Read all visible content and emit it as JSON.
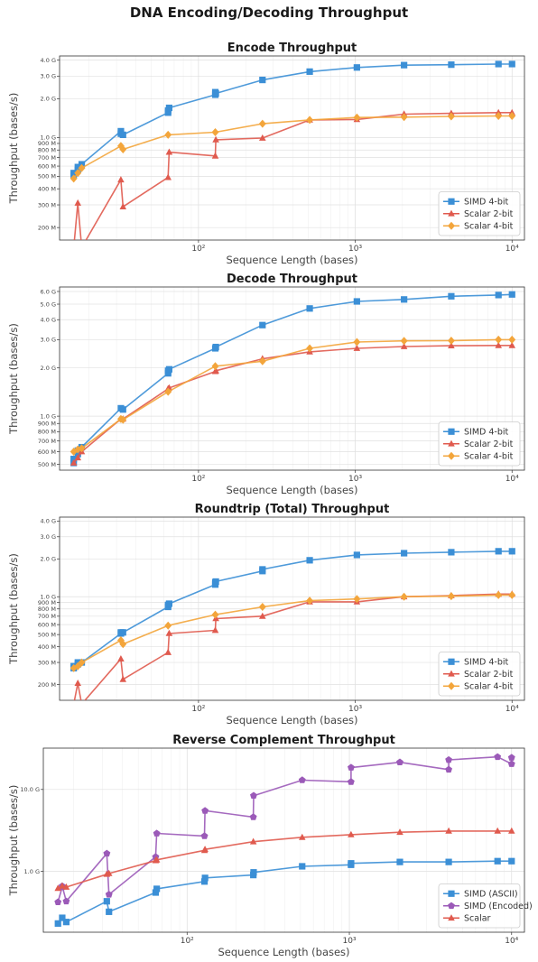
{
  "figure": {
    "title": "DNA Encoding/Decoding Throughput"
  },
  "colors": {
    "blue": "#3b8fd6",
    "red": "#e05a4e",
    "orange": "#f3a53b",
    "purple": "#9b5ab8"
  },
  "chart_data": [
    {
      "type": "line",
      "title": "Encode Throughput",
      "xlabel": "Sequence Length (bases)",
      "ylabel": "Throughput (bases/s)",
      "xscale": "log",
      "yscale": "log",
      "xlim": [
        13,
        12000
      ],
      "ylim": [
        160000000,
        4300000000
      ],
      "grid": true,
      "legend_position": "bottom-right",
      "yticks": [
        {
          "v": 200000000,
          "label": "200 M"
        },
        {
          "v": 300000000,
          "label": "300 M"
        },
        {
          "v": 400000000,
          "label": "400 M"
        },
        {
          "v": 500000000,
          "label": "500 M"
        },
        {
          "v": 600000000,
          "label": "600 M"
        },
        {
          "v": 700000000,
          "label": "700 M"
        },
        {
          "v": 800000000,
          "label": "800 M"
        },
        {
          "v": 900000000,
          "label": "900 M"
        },
        {
          "v": 1000000000,
          "label": "1.0 G"
        },
        {
          "v": 2000000000,
          "label": "2.0 G"
        },
        {
          "v": 3000000000,
          "label": "3.0 G"
        },
        {
          "v": 4000000000,
          "label": "4.0 G"
        }
      ],
      "xticks": [
        {
          "v": 100,
          "label": "10²"
        },
        {
          "v": 1000,
          "label": "10³"
        },
        {
          "v": 10000,
          "label": "10⁴"
        }
      ],
      "series": [
        {
          "name": "SIMD 4-bit",
          "color": "blue",
          "marker": "square",
          "x": [
            16,
            16,
            17,
            17,
            18,
            32,
            32,
            33,
            64,
            64,
            65,
            128,
            128,
            129,
            256,
            512,
            1024,
            2048,
            4096,
            8192,
            10000
          ],
          "y": [
            510000000,
            530000000,
            560000000,
            590000000,
            620000000,
            1120000000,
            1070000000,
            1050000000,
            1560000000,
            1620000000,
            1700000000,
            2150000000,
            2250000000,
            2200000000,
            2800000000,
            3250000000,
            3500000000,
            3650000000,
            3680000000,
            3720000000,
            3720000000
          ]
        },
        {
          "name": "Scalar 2-bit",
          "color": "red",
          "marker": "triangle",
          "x": [
            16,
            17,
            18,
            32,
            33,
            64,
            65,
            128,
            129,
            256,
            512,
            1024,
            2048,
            4096,
            8192,
            10000
          ],
          "y": [
            140000000,
            310000000,
            140000000,
            470000000,
            290000000,
            490000000,
            770000000,
            720000000,
            960000000,
            990000000,
            1370000000,
            1380000000,
            1520000000,
            1540000000,
            1560000000,
            1560000000
          ]
        },
        {
          "name": "Scalar 4-bit",
          "color": "orange",
          "marker": "diamond",
          "x": [
            16,
            17,
            18,
            32,
            33,
            64,
            128,
            256,
            512,
            1024,
            2048,
            4096,
            8192,
            10000
          ],
          "y": [
            480000000,
            530000000,
            580000000,
            860000000,
            810000000,
            1050000000,
            1100000000,
            1280000000,
            1370000000,
            1430000000,
            1440000000,
            1460000000,
            1470000000,
            1470000000
          ]
        }
      ]
    },
    {
      "type": "line",
      "title": "Decode Throughput",
      "xlabel": "Sequence Length (bases)",
      "ylabel": "Throughput (bases/s)",
      "xscale": "log",
      "yscale": "log",
      "xlim": [
        13,
        12000
      ],
      "ylim": [
        460000000,
        6400000000
      ],
      "grid": true,
      "legend_position": "bottom-right",
      "yticks": [
        {
          "v": 500000000,
          "label": "500 M"
        },
        {
          "v": 600000000,
          "label": "600 M"
        },
        {
          "v": 700000000,
          "label": "700 M"
        },
        {
          "v": 800000000,
          "label": "800 M"
        },
        {
          "v": 900000000,
          "label": "900 M"
        },
        {
          "v": 1000000000,
          "label": "1.0 G"
        },
        {
          "v": 2000000000,
          "label": "2.0 G"
        },
        {
          "v": 3000000000,
          "label": "3.0 G"
        },
        {
          "v": 4000000000,
          "label": "4.0 G"
        },
        {
          "v": 5000000000,
          "label": "5.0 G"
        },
        {
          "v": 6000000000,
          "label": "6.0 G"
        }
      ],
      "xticks": [
        {
          "v": 100,
          "label": "10²"
        },
        {
          "v": 1000,
          "label": "10³"
        },
        {
          "v": 10000,
          "label": "10⁴"
        }
      ],
      "series": [
        {
          "name": "SIMD 4-bit",
          "color": "blue",
          "marker": "square",
          "x": [
            16,
            16,
            17,
            17,
            18,
            32,
            33,
            64,
            64,
            65,
            128,
            129,
            256,
            512,
            1024,
            2048,
            4096,
            8192,
            10000
          ],
          "y": [
            510000000,
            540000000,
            580000000,
            610000000,
            640000000,
            1120000000,
            1100000000,
            1850000000,
            1920000000,
            1960000000,
            2650000000,
            2700000000,
            3700000000,
            4700000000,
            5200000000,
            5350000000,
            5600000000,
            5700000000,
            5750000000
          ]
        },
        {
          "name": "Scalar 2-bit",
          "color": "red",
          "marker": "triangle",
          "x": [
            16,
            17,
            18,
            32,
            33,
            64,
            65,
            128,
            129,
            256,
            512,
            1024,
            2048,
            4096,
            8192,
            10000
          ],
          "y": [
            510000000,
            550000000,
            600000000,
            960000000,
            960000000,
            1480000000,
            1500000000,
            1900000000,
            1920000000,
            2280000000,
            2520000000,
            2650000000,
            2720000000,
            2750000000,
            2760000000,
            2760000000
          ]
        },
        {
          "name": "Scalar 4-bit",
          "color": "orange",
          "marker": "diamond",
          "x": [
            16,
            17,
            18,
            32,
            33,
            64,
            128,
            256,
            512,
            1024,
            2048,
            4096,
            8192,
            10000
          ],
          "y": [
            600000000,
            620000000,
            630000000,
            960000000,
            950000000,
            1420000000,
            2050000000,
            2200000000,
            2650000000,
            2900000000,
            2950000000,
            2960000000,
            3000000000,
            3000000000
          ]
        }
      ]
    },
    {
      "type": "line",
      "title": "Roundtrip (Total) Throughput",
      "xlabel": "Sequence Length (bases)",
      "ylabel": "Throughput (bases/s)",
      "xscale": "log",
      "yscale": "log",
      "xlim": [
        13,
        12000
      ],
      "ylim": [
        150000000,
        4300000000
      ],
      "grid": true,
      "legend_position": "bottom-right",
      "yticks": [
        {
          "v": 200000000,
          "label": "200 M"
        },
        {
          "v": 300000000,
          "label": "300 M"
        },
        {
          "v": 400000000,
          "label": "400 M"
        },
        {
          "v": 500000000,
          "label": "500 M"
        },
        {
          "v": 600000000,
          "label": "600 M"
        },
        {
          "v": 700000000,
          "label": "700 M"
        },
        {
          "v": 800000000,
          "label": "800 M"
        },
        {
          "v": 900000000,
          "label": "900 M"
        },
        {
          "v": 1000000000,
          "label": "1.0 G"
        },
        {
          "v": 2000000000,
          "label": "2.0 G"
        },
        {
          "v": 3000000000,
          "label": "3.0 G"
        },
        {
          "v": 4000000000,
          "label": "4.0 G"
        }
      ],
      "xticks": [
        {
          "v": 100,
          "label": "10²"
        },
        {
          "v": 1000,
          "label": "10³"
        },
        {
          "v": 10000,
          "label": "10⁴"
        }
      ],
      "series": [
        {
          "name": "SIMD 4-bit",
          "color": "blue",
          "marker": "square",
          "x": [
            16,
            16,
            17,
            17,
            18,
            32,
            32,
            33,
            64,
            64,
            65,
            128,
            128,
            129,
            256,
            256,
            512,
            1024,
            2048,
            4096,
            8192,
            10000
          ],
          "y": [
            270000000,
            280000000,
            290000000,
            300000000,
            300000000,
            510000000,
            520000000,
            520000000,
            830000000,
            860000000,
            880000000,
            1250000000,
            1300000000,
            1320000000,
            1600000000,
            1650000000,
            1950000000,
            2150000000,
            2220000000,
            2260000000,
            2300000000,
            2300000000
          ]
        },
        {
          "name": "Scalar 2-bit",
          "color": "red",
          "marker": "triangle",
          "x": [
            16,
            17,
            18,
            32,
            33,
            64,
            65,
            128,
            129,
            256,
            512,
            1024,
            2048,
            4096,
            8192,
            10000
          ],
          "y": [
            140000000,
            205000000,
            140000000,
            320000000,
            220000000,
            360000000,
            510000000,
            540000000,
            670000000,
            700000000,
            910000000,
            910000000,
            1000000000,
            1020000000,
            1050000000,
            1050000000
          ]
        },
        {
          "name": "Scalar 4-bit",
          "color": "orange",
          "marker": "diamond",
          "x": [
            16,
            17,
            18,
            32,
            33,
            64,
            128,
            256,
            512,
            1024,
            2048,
            4096,
            8192,
            10000
          ],
          "y": [
            270000000,
            280000000,
            300000000,
            450000000,
            420000000,
            590000000,
            720000000,
            830000000,
            930000000,
            960000000,
            1000000000,
            1010000000,
            1030000000,
            1030000000
          ]
        }
      ]
    },
    {
      "type": "line",
      "title": "Reverse Complement Throughput",
      "xlabel": "Sequence Length (bases)",
      "ylabel": "Throughput (bases/s)",
      "xscale": "log",
      "yscale": "log",
      "xlim": [
        13,
        12000
      ],
      "ylim": [
        180000000,
        32000000000
      ],
      "grid": true,
      "legend_position": "bottom-right",
      "yticks": [
        {
          "v": 1000000000,
          "label": "1.0 G"
        },
        {
          "v": 10000000000,
          "label": "10.0 G"
        }
      ],
      "xticks": [
        {
          "v": 100,
          "label": "10²"
        },
        {
          "v": 1000,
          "label": "10³"
        },
        {
          "v": 10000,
          "label": "10⁴"
        }
      ],
      "series": [
        {
          "name": "SIMD (ASCII)",
          "color": "blue",
          "marker": "square",
          "x": [
            16,
            17,
            18,
            32,
            33,
            64,
            65,
            128,
            129,
            256,
            257,
            512,
            1024,
            1025,
            2048,
            4096,
            8192,
            10000
          ],
          "y": [
            230000000,
            270000000,
            240000000,
            430000000,
            320000000,
            550000000,
            610000000,
            750000000,
            830000000,
            900000000,
            970000000,
            1150000000,
            1200000000,
            1250000000,
            1300000000,
            1300000000,
            1330000000,
            1330000000
          ]
        },
        {
          "name": "SIMD (Encoded)",
          "color": "purple",
          "marker": "pentagon",
          "x": [
            16,
            17,
            17,
            18,
            32,
            33,
            64,
            65,
            128,
            129,
            256,
            257,
            512,
            1024,
            1025,
            2048,
            4096,
            4097,
            8192,
            10000,
            10001
          ],
          "y": [
            420000000,
            640000000,
            660000000,
            430000000,
            1650000000,
            520000000,
            1500000000,
            2900000000,
            2700000000,
            5500000000,
            4600000000,
            8400000000,
            13000000000,
            12400000000,
            18500000000,
            21500000000,
            17500000000,
            23000000000,
            25000000000,
            20500000000,
            24500000000
          ]
        },
        {
          "name": "Scalar",
          "color": "red",
          "marker": "triangle",
          "x": [
            16,
            17,
            18,
            32,
            33,
            64,
            65,
            128,
            129,
            256,
            512,
            1024,
            2048,
            4096,
            8192,
            10000
          ],
          "y": [
            620000000,
            660000000,
            640000000,
            920000000,
            940000000,
            1350000000,
            1380000000,
            1800000000,
            1850000000,
            2300000000,
            2600000000,
            2800000000,
            3000000000,
            3100000000,
            3100000000,
            3100000000
          ]
        }
      ]
    }
  ]
}
